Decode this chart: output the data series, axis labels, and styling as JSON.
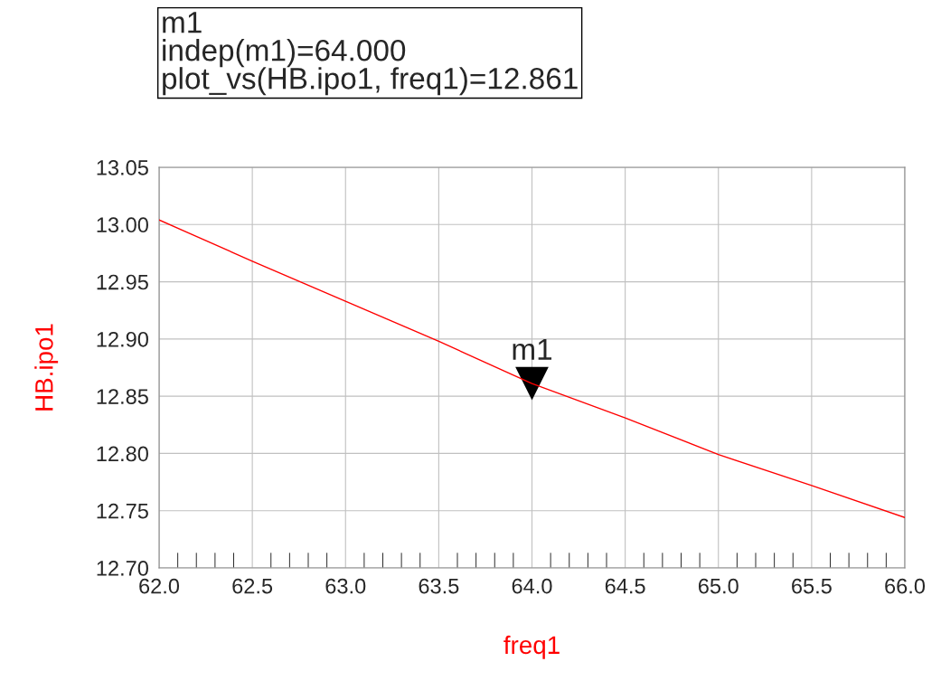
{
  "chart_data": {
    "type": "line",
    "xlabel": "freq1",
    "ylabel": "HB.ipo1",
    "series": [
      {
        "color": "#ff0000",
        "x": [
          62.0,
          62.5,
          63.0,
          63.5,
          64.0,
          64.5,
          65.0,
          65.5,
          66.0
        ],
        "values": [
          13.004,
          12.968,
          12.933,
          12.898,
          12.861,
          12.831,
          12.799,
          12.772,
          12.744
        ]
      },
      {
        "type": "scatter",
        "color": "#000000",
        "marker": "triangle",
        "x": [
          64.0
        ],
        "values": [
          12.861
        ]
      }
    ],
    "xlim": [
      62.0,
      66.0
    ],
    "xticks": [
      {
        "value": 62.0,
        "label": "62.0"
      },
      {
        "value": 62.5,
        "label": "62.5"
      },
      {
        "value": 63.0,
        "label": "63.0"
      },
      {
        "value": 63.5,
        "label": "63.5"
      },
      {
        "value": 64.0,
        "label": "64.0"
      },
      {
        "value": 64.5,
        "label": "64.5"
      },
      {
        "value": 65.0,
        "label": "65.0"
      },
      {
        "value": 65.5,
        "label": "65.5"
      },
      {
        "value": 66.0,
        "label": "66.0"
      }
    ],
    "ylim": [
      12.7,
      13.05
    ],
    "yticks": [
      {
        "value": 12.7,
        "label": "12.70"
      },
      {
        "value": 12.75,
        "label": "12.75"
      },
      {
        "value": 12.8,
        "label": "12.80"
      },
      {
        "value": 12.85,
        "label": "12.85"
      },
      {
        "value": 12.9,
        "label": "12.90"
      },
      {
        "value": 12.95,
        "label": "12.95"
      },
      {
        "value": 13.0,
        "label": "13.00"
      },
      {
        "value": 13.05,
        "label": "13.05"
      }
    ],
    "grid": true,
    "annotations": [
      "m1\nindep(m1)=64.000\nplot_vs(HB.ipo1, freq1)=12.861",
      {
        "text": "m1",
        "x": 64.0,
        "y": 12.861
      }
    ]
  }
}
